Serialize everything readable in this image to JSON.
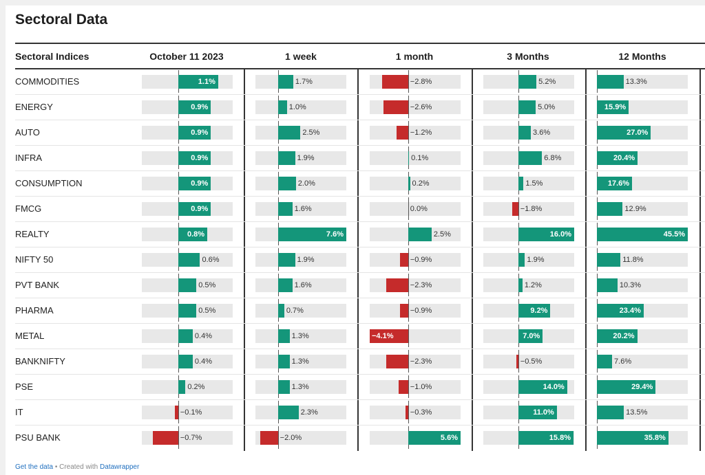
{
  "title": "Sectoral Data",
  "footer": {
    "get_data": "Get the data",
    "separator": " • Created with ",
    "datawrapper": "Datawrapper"
  },
  "colors": {
    "positive": "#14967a",
    "negative": "#c52b2b",
    "track": "#e8e8e8"
  },
  "chart_data": {
    "type": "table",
    "row_header": "Sectoral Indices",
    "columns": [
      "October 11 2023",
      "1 week",
      "1 month",
      "3 Months",
      "12 Months"
    ],
    "rows": [
      {
        "name": "COMMODITIES",
        "values": [
          1.1,
          1.7,
          -2.8,
          5.2,
          13.3
        ]
      },
      {
        "name": "ENERGY",
        "values": [
          0.9,
          1.0,
          -2.6,
          5.0,
          15.9
        ]
      },
      {
        "name": "AUTO",
        "values": [
          0.9,
          2.5,
          -1.2,
          3.6,
          27.0
        ]
      },
      {
        "name": "INFRA",
        "values": [
          0.9,
          1.9,
          0.1,
          6.8,
          20.4
        ]
      },
      {
        "name": "CONSUMPTION",
        "values": [
          0.9,
          2.0,
          0.2,
          1.5,
          17.6
        ]
      },
      {
        "name": "FMCG",
        "values": [
          0.9,
          1.6,
          0.0,
          -1.8,
          12.9
        ]
      },
      {
        "name": "REALTY",
        "values": [
          0.8,
          7.6,
          2.5,
          16.0,
          45.5
        ]
      },
      {
        "name": "NIFTY 50",
        "values": [
          0.6,
          1.9,
          -0.9,
          1.9,
          11.8
        ]
      },
      {
        "name": "PVT BANK",
        "values": [
          0.5,
          1.6,
          -2.3,
          1.2,
          10.3
        ]
      },
      {
        "name": "PHARMA",
        "values": [
          0.5,
          0.7,
          -0.9,
          9.2,
          23.4
        ]
      },
      {
        "name": "METAL",
        "values": [
          0.4,
          1.3,
          -4.1,
          7.0,
          20.2
        ]
      },
      {
        "name": "BANKNIFTY",
        "values": [
          0.4,
          1.3,
          -2.3,
          -0.5,
          7.6
        ]
      },
      {
        "name": "PSE",
        "values": [
          0.2,
          1.3,
          -1.0,
          14.0,
          29.4
        ]
      },
      {
        "name": "IT",
        "values": [
          -0.1,
          2.3,
          -0.3,
          11.0,
          13.5
        ]
      },
      {
        "name": "PSU BANK",
        "values": [
          -0.7,
          -2.0,
          5.6,
          15.8,
          35.8
        ]
      }
    ],
    "labels": [
      [
        "1.1%",
        "1.7%",
        "−2.8%",
        "5.2%",
        "13.3%"
      ],
      [
        "0.9%",
        "1.0%",
        "−2.6%",
        "5.0%",
        "15.9%"
      ],
      [
        "0.9%",
        "2.5%",
        "−1.2%",
        "3.6%",
        "27.0%"
      ],
      [
        "0.9%",
        "1.9%",
        "0.1%",
        "6.8%",
        "20.4%"
      ],
      [
        "0.9%",
        "2.0%",
        "0.2%",
        "1.5%",
        "17.6%"
      ],
      [
        "0.9%",
        "1.6%",
        "0.0%",
        "−1.8%",
        "12.9%"
      ],
      [
        "0.8%",
        "7.6%",
        "2.5%",
        "16.0%",
        "45.5%"
      ],
      [
        "0.6%",
        "1.9%",
        "−0.9%",
        "1.9%",
        "11.8%"
      ],
      [
        "0.5%",
        "1.6%",
        "−2.3%",
        "1.2%",
        "10.3%"
      ],
      [
        "0.5%",
        "0.7%",
        "−0.9%",
        "9.2%",
        "23.4%"
      ],
      [
        "0.4%",
        "1.3%",
        "−4.1%",
        "7.0%",
        "20.2%"
      ],
      [
        "0.4%",
        "1.3%",
        "−2.3%",
        "−0.5%",
        "7.6%"
      ],
      [
        "0.2%",
        "1.3%",
        "−1.0%",
        "14.0%",
        "29.4%"
      ],
      [
        "−0.1%",
        "2.3%",
        "−0.3%",
        "11.0%",
        "13.5%"
      ],
      [
        "−0.7%",
        "−2.0%",
        "5.6%",
        "15.8%",
        "35.8%"
      ]
    ],
    "column_domains": [
      [
        -1.0,
        1.5
      ],
      [
        -2.5,
        7.6
      ],
      [
        -4.1,
        5.6
      ],
      [
        -10.0,
        16.0
      ],
      [
        0,
        45.5
      ]
    ]
  }
}
